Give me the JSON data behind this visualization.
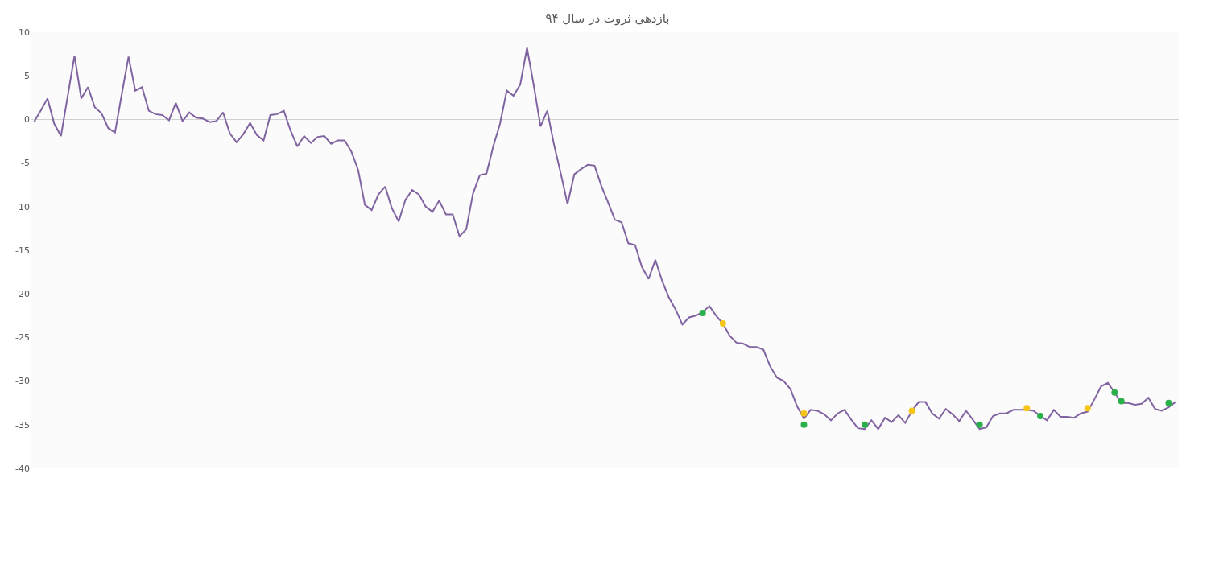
{
  "chart_data": {
    "type": "line",
    "title": "بازدهی ثروت در سال ۹۴",
    "categories": [
      null,
      null,
      null,
      null,
      null,
      null,
      null,
      null,
      null,
      null,
      null,
      null,
      null,
      null,
      null,
      null,
      null,
      null,
      null,
      null,
      null,
      null,
      null,
      null,
      null,
      null,
      null,
      null,
      null,
      null,
      null,
      null,
      null,
      null,
      null,
      null,
      null,
      null,
      null,
      null,
      null,
      null,
      null,
      null,
      null,
      null,
      null,
      null,
      null,
      null,
      null,
      null,
      null,
      null,
      null,
      null,
      null,
      null,
      null,
      null,
      null,
      null,
      null,
      null,
      null,
      null,
      null,
      null,
      null,
      null,
      null,
      null,
      null,
      null,
      null,
      null,
      null,
      null,
      null,
      null,
      null,
      null,
      null,
      null,
      null,
      null,
      null,
      null,
      null,
      null,
      null,
      null,
      null,
      null,
      null,
      null,
      null,
      null,
      null,
      null,
      null,
      null,
      null,
      null,
      null,
      null,
      null,
      null,
      null,
      null,
      null,
      null,
      null,
      null,
      null,
      null,
      null,
      null,
      null,
      null,
      null,
      null,
      null,
      null,
      null,
      null,
      null,
      null,
      null,
      null,
      null,
      null,
      null,
      null,
      null,
      null,
      null,
      null,
      null,
      null,
      null,
      null,
      null,
      null,
      null,
      null,
      null,
      null,
      null,
      null,
      null,
      null,
      null,
      null,
      null,
      null,
      null,
      null,
      null,
      null,
      null,
      null,
      null,
      null,
      null,
      null,
      null,
      null,
      null,
      null
    ],
    "series": [
      {
        "color": "#8064a2",
        "values": [
          -0.3,
          1.0,
          2.4,
          -0.5,
          -1.9,
          2.7,
          7.3,
          2.4,
          3.7,
          1.4,
          0.7,
          -1.0,
          -1.5,
          2.9,
          7.2,
          3.3,
          3.7,
          1.0,
          0.6,
          0.5,
          -0.1,
          1.9,
          -0.2,
          0.8,
          0.2,
          0.1,
          -0.3,
          -0.2,
          0.8,
          -1.6,
          -2.6,
          -1.7,
          -0.4,
          -1.8,
          -2.4,
          0.5,
          0.6,
          1.0,
          -1.3,
          -3.1,
          -1.9,
          -2.7,
          -2.0,
          -1.9,
          -2.8,
          -2.4,
          -2.4,
          -3.7,
          -5.8,
          -9.8,
          -10.4,
          -8.6,
          -7.7,
          -10.2,
          -11.7,
          -9.2,
          -8.1,
          -8.6,
          -10.0,
          -10.6,
          -9.3,
          -10.9,
          -10.9,
          -13.4,
          -12.6,
          -8.5,
          -6.4,
          -6.2,
          -3.1,
          -0.5,
          3.3,
          2.7,
          4.0,
          8.2,
          3.9,
          -0.8,
          1.0,
          -2.9,
          -6.2,
          -9.7,
          -6.3,
          -5.7,
          -5.2,
          -5.3,
          -7.6,
          -9.5,
          -11.5,
          -11.8,
          -14.2,
          -14.4,
          -16.9,
          -18.3,
          -16.1,
          -18.5,
          -20.4,
          -21.8,
          -23.5,
          -22.7,
          -22.5,
          -22.1,
          -21.4,
          -22.5,
          -23.4,
          -24.8,
          -25.6,
          -25.7,
          -26.1,
          -26.1,
          -26.4,
          -28.3,
          -29.6,
          -30.0,
          -30.9,
          -32.9,
          -34.3,
          -33.3,
          -33.4,
          -33.8,
          -34.5,
          -33.7,
          -33.3,
          -34.4,
          -35.4,
          -35.5,
          -34.5,
          -35.5,
          -34.2,
          -34.7,
          -33.9,
          -34.8,
          -33.4,
          -32.4,
          -32.4,
          -33.7,
          -34.3,
          -33.2,
          -33.8,
          -34.6,
          -33.4,
          -34.4,
          -35.5,
          -35.3,
          -34.0,
          -33.7,
          -33.7,
          -33.3,
          -33.3,
          -33.3,
          -33.4,
          -34.0,
          -34.5,
          -33.3,
          -34.1,
          -34.1,
          -34.2,
          -33.7,
          -33.5,
          -32.1,
          -30.6,
          -30.2,
          -31.3,
          -32.5,
          -32.5,
          -32.7,
          -32.6,
          -31.9,
          -33.2,
          -33.4,
          -33.0,
          -32.4
        ]
      },
      {
        "type": "scatter",
        "marker": "circle",
        "color": "#2ab04b",
        "values": [
          null,
          null,
          null,
          null,
          null,
          null,
          null,
          null,
          null,
          null,
          null,
          null,
          null,
          null,
          null,
          null,
          null,
          null,
          null,
          null,
          null,
          null,
          null,
          null,
          null,
          null,
          null,
          null,
          null,
          null,
          null,
          null,
          null,
          null,
          null,
          null,
          null,
          null,
          null,
          null,
          null,
          null,
          null,
          null,
          null,
          null,
          null,
          null,
          null,
          null,
          null,
          null,
          null,
          null,
          null,
          null,
          null,
          null,
          null,
          null,
          null,
          null,
          null,
          null,
          null,
          null,
          null,
          null,
          null,
          null,
          null,
          null,
          null,
          null,
          null,
          null,
          null,
          null,
          null,
          null,
          null,
          null,
          null,
          null,
          null,
          null,
          null,
          null,
          null,
          null,
          null,
          null,
          null,
          null,
          null,
          null,
          null,
          null,
          null,
          -22.2,
          null,
          null,
          null,
          null,
          null,
          null,
          null,
          null,
          null,
          null,
          null,
          null,
          null,
          null,
          -35.0,
          null,
          null,
          null,
          null,
          null,
          null,
          null,
          null,
          -35.0,
          null,
          null,
          null,
          null,
          null,
          null,
          null,
          null,
          null,
          null,
          null,
          null,
          null,
          null,
          null,
          null,
          -35.0,
          null,
          null,
          null,
          null,
          null,
          null,
          null,
          null,
          -34.0,
          null,
          null,
          null,
          null,
          null,
          null,
          null,
          null,
          null,
          null,
          -31.3,
          -32.3,
          null,
          null,
          null,
          null,
          null,
          null,
          -32.5,
          null
        ]
      },
      {
        "type": "scatter",
        "marker": "circle",
        "color": "#f5c518",
        "values": [
          null,
          null,
          null,
          null,
          null,
          null,
          null,
          null,
          null,
          null,
          null,
          null,
          null,
          null,
          null,
          null,
          null,
          null,
          null,
          null,
          null,
          null,
          null,
          null,
          null,
          null,
          null,
          null,
          null,
          null,
          null,
          null,
          null,
          null,
          null,
          null,
          null,
          null,
          null,
          null,
          null,
          null,
          null,
          null,
          null,
          null,
          null,
          null,
          null,
          null,
          null,
          null,
          null,
          null,
          null,
          null,
          null,
          null,
          null,
          null,
          null,
          null,
          null,
          null,
          null,
          null,
          null,
          null,
          null,
          null,
          null,
          null,
          null,
          null,
          null,
          null,
          null,
          null,
          null,
          null,
          null,
          null,
          null,
          null,
          null,
          null,
          null,
          null,
          null,
          null,
          null,
          null,
          null,
          null,
          null,
          null,
          null,
          null,
          null,
          null,
          null,
          null,
          -23.4,
          null,
          null,
          null,
          null,
          null,
          null,
          null,
          null,
          null,
          null,
          null,
          -33.7,
          null,
          null,
          null,
          null,
          null,
          null,
          null,
          null,
          null,
          null,
          null,
          null,
          null,
          null,
          null,
          -33.4,
          null,
          null,
          null,
          null,
          null,
          null,
          null,
          null,
          null,
          null,
          null,
          null,
          null,
          null,
          null,
          null,
          -33.1,
          null,
          null,
          null,
          null,
          null,
          null,
          null,
          null,
          -33.1,
          null,
          null,
          null,
          null,
          null,
          null,
          null,
          null,
          null,
          null,
          null,
          null,
          null
        ]
      }
    ],
    "ylim": [
      -40,
      10
    ],
    "yticks": [
      10,
      5,
      0,
      -5,
      -10,
      -15,
      -20,
      -25,
      -30,
      -35,
      -40
    ],
    "tick_labels": "y"
  }
}
